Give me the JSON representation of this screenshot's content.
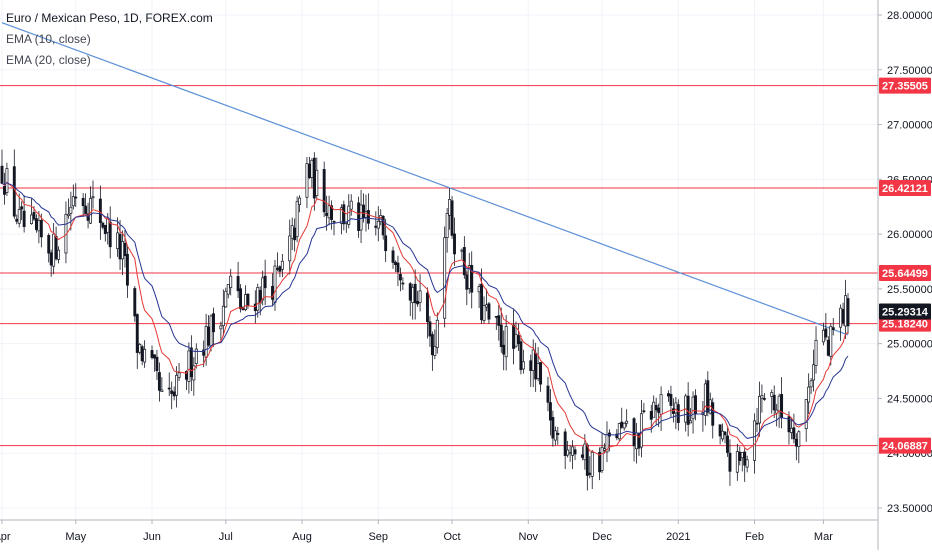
{
  "chart_data": {
    "type": "candlestick",
    "title": "Euro / Mexican Peso, 1D, FOREX.com",
    "indicators": [
      "EMA (10, close)",
      "EMA (20, close)"
    ],
    "x_range": [
      "2020-04-01",
      "2021-03-11"
    ],
    "ylim": [
      23.4,
      28.1
    ],
    "y_ticks": [
      {
        "value": 28.0,
        "label": "28.00000"
      },
      {
        "value": 27.5,
        "label": "27.50000"
      },
      {
        "value": 27.0,
        "label": "27.00000"
      },
      {
        "value": 26.5,
        "label": "26.50000"
      },
      {
        "value": 26.0,
        "label": "26.00000"
      },
      {
        "value": 25.5,
        "label": "25.50000"
      },
      {
        "value": 25.0,
        "label": "25.00000"
      },
      {
        "value": 24.5,
        "label": "24.50000"
      },
      {
        "value": 24.0,
        "label": "24.00000"
      },
      {
        "value": 23.5,
        "label": "23.50000"
      }
    ],
    "x_ticks": [
      {
        "date": "2020-04-01",
        "label": "Apr"
      },
      {
        "date": "2020-05-01",
        "label": "May"
      },
      {
        "date": "2020-06-01",
        "label": "Jun"
      },
      {
        "date": "2020-07-01",
        "label": "Jul"
      },
      {
        "date": "2020-08-01",
        "label": "Aug"
      },
      {
        "date": "2020-09-01",
        "label": "Sep"
      },
      {
        "date": "2020-10-01",
        "label": "Oct"
      },
      {
        "date": "2020-11-01",
        "label": "Nov"
      },
      {
        "date": "2020-12-01",
        "label": "Dec"
      },
      {
        "date": "2021-01-01",
        "label": "2021"
      },
      {
        "date": "2021-02-01",
        "label": "Feb"
      },
      {
        "date": "2021-03-01",
        "label": "Mar"
      }
    ],
    "horizontal_levels": [
      {
        "value": 27.35505,
        "label": "27.35505",
        "color": "#f23645"
      },
      {
        "value": 26.42121,
        "label": "26.42121",
        "color": "#f23645"
      },
      {
        "value": 25.64499,
        "label": "25.64499",
        "color": "#f23645"
      },
      {
        "value": 25.1824,
        "label": "25.18240",
        "color": "#f23645"
      },
      {
        "value": 24.06887,
        "label": "24.06887",
        "color": "#f23645"
      }
    ],
    "last_price": {
      "value": 25.29314,
      "label": "25.29314",
      "color": "#131722"
    },
    "trendline": {
      "start": {
        "date": "2020-04-01",
        "value": 27.93
      },
      "end": {
        "date": "2021-03-11",
        "value": 25.08
      },
      "color": "#5b8fd6"
    },
    "ema_colors": {
      "ema10": "#e53935",
      "ema20": "#283593"
    },
    "price_anchors": [
      [
        "2020-04-01",
        26.6
      ],
      [
        "2020-04-08",
        26.1
      ],
      [
        "2020-04-22",
        25.85
      ],
      [
        "2020-05-01",
        26.4
      ],
      [
        "2020-05-10",
        26.2
      ],
      [
        "2020-05-20",
        25.8
      ],
      [
        "2020-05-26",
        25.0
      ],
      [
        "2020-06-02",
        24.7
      ],
      [
        "2020-06-06",
        24.4
      ],
      [
        "2020-06-12",
        24.6
      ],
      [
        "2020-06-20",
        25.0
      ],
      [
        "2020-06-26",
        25.15
      ],
      [
        "2020-07-03",
        25.55
      ],
      [
        "2020-07-08",
        25.3
      ],
      [
        "2020-07-15",
        25.5
      ],
      [
        "2020-07-23",
        25.6
      ],
      [
        "2020-07-28",
        25.95
      ],
      [
        "2020-08-03",
        26.6
      ],
      [
        "2020-08-08",
        26.4
      ],
      [
        "2020-08-14",
        26.2
      ],
      [
        "2020-08-22",
        26.15
      ],
      [
        "2020-08-28",
        26.05
      ],
      [
        "2020-09-03",
        26.05
      ],
      [
        "2020-09-09",
        25.8
      ],
      [
        "2020-09-15",
        25.5
      ],
      [
        "2020-09-20",
        25.2
      ],
      [
        "2020-09-24",
        25.0
      ],
      [
        "2020-09-26",
        25.7
      ],
      [
        "2020-09-29",
        26.25
      ],
      [
        "2020-10-03",
        25.9
      ],
      [
        "2020-10-09",
        25.5
      ],
      [
        "2020-10-17",
        25.15
      ],
      [
        "2020-10-26",
        24.95
      ],
      [
        "2020-11-02",
        24.85
      ],
      [
        "2020-11-06",
        24.6
      ],
      [
        "2020-11-10",
        24.2
      ],
      [
        "2020-11-18",
        24.1
      ],
      [
        "2020-11-25",
        23.9
      ],
      [
        "2020-11-30",
        23.95
      ],
      [
        "2020-12-07",
        24.2
      ],
      [
        "2020-12-15",
        24.1
      ],
      [
        "2020-12-20",
        24.4
      ],
      [
        "2020-12-29",
        24.4
      ],
      [
        "2021-01-06",
        24.35
      ],
      [
        "2021-01-12",
        24.5
      ],
      [
        "2021-01-16",
        24.2
      ],
      [
        "2021-01-21",
        24.0
      ],
      [
        "2021-01-25",
        23.85
      ],
      [
        "2021-01-29",
        24.05
      ],
      [
        "2021-02-02",
        24.4
      ],
      [
        "2021-02-06",
        24.6
      ],
      [
        "2021-02-12",
        24.35
      ],
      [
        "2021-02-19",
        24.2
      ],
      [
        "2021-02-22",
        24.45
      ],
      [
        "2021-02-25",
        24.9
      ],
      [
        "2021-02-28",
        25.2
      ],
      [
        "2021-03-03",
        24.9
      ],
      [
        "2021-03-06",
        25.2
      ],
      [
        "2021-03-10",
        25.29
      ]
    ]
  }
}
